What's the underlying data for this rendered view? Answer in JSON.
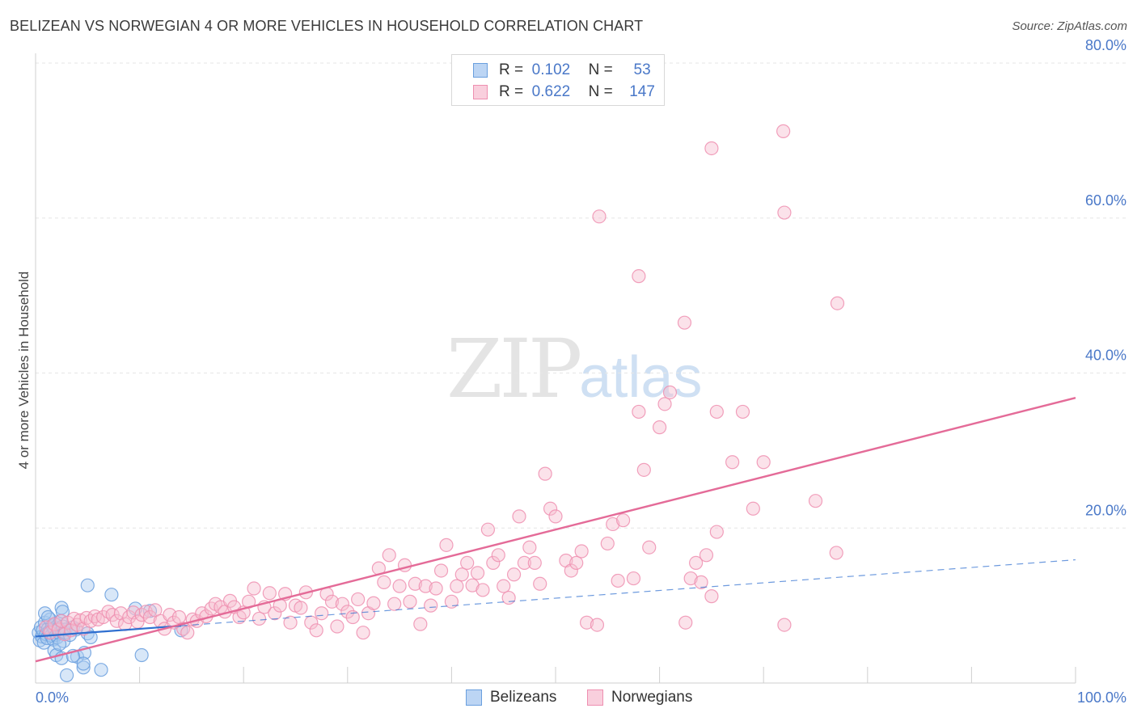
{
  "title": "BELIZEAN VS NORWEGIAN 4 OR MORE VEHICLES IN HOUSEHOLD CORRELATION CHART",
  "source": "Source: ZipAtlas.com",
  "watermark": {
    "zip": "ZIP",
    "atlas": "atlas"
  },
  "legend_top": {
    "rows": [
      {
        "r_label": "R =",
        "r_value": "0.102",
        "n_label": "N =",
        "n_value": "53"
      },
      {
        "r_label": "R =",
        "r_value": "0.622",
        "n_label": "N =",
        "n_value": "147"
      }
    ]
  },
  "legend_bottom": {
    "belizeans": "Belizeans",
    "norwegians": "Norwegians"
  },
  "colors": {
    "blue_fill": "#a9c9ef",
    "blue_stroke": "#6a9fde",
    "blue_line": "#2f6fd0",
    "pink_fill": "#f6bfd1",
    "pink_stroke": "#ee8fb0",
    "pink_line": "#e46b98",
    "grid": "#e6e6e6",
    "tick_text": "#4a78c8"
  },
  "chart_data": {
    "type": "scatter",
    "title": "BELIZEAN VS NORWEGIAN 4 OR MORE VEHICLES IN HOUSEHOLD CORRELATION CHART",
    "xlabel": "",
    "ylabel": "4 or more Vehicles in Household",
    "xlim": [
      0,
      100
    ],
    "ylim": [
      0,
      80
    ],
    "y_ticks": [
      {
        "v": 20,
        "label": "20.0%"
      },
      {
        "v": 40,
        "label": "40.0%"
      },
      {
        "v": 60,
        "label": "60.0%"
      },
      {
        "v": 80,
        "label": "80.0%"
      }
    ],
    "x_ticks": [
      {
        "v": 0,
        "label": "0.0%"
      },
      {
        "v": 100,
        "label": "100.0%"
      }
    ],
    "series": [
      {
        "name": "Belizeans",
        "R": 0.102,
        "N": 53,
        "trend": {
          "x0": 0,
          "y0": 6.0,
          "x1": 100,
          "y1": 15.9,
          "solid_until": 14
        },
        "points": [
          [
            0.3,
            6.5
          ],
          [
            0.4,
            5.5
          ],
          [
            0.5,
            7.2
          ],
          [
            0.6,
            6.0
          ],
          [
            0.7,
            6.8
          ],
          [
            0.8,
            5.2
          ],
          [
            0.9,
            7.8
          ],
          [
            1.0,
            6.3
          ],
          [
            1.1,
            5.8
          ],
          [
            1.2,
            7.0
          ],
          [
            1.3,
            6.6
          ],
          [
            1.4,
            8.2
          ],
          [
            1.5,
            6.1
          ],
          [
            1.6,
            7.4
          ],
          [
            1.7,
            5.6
          ],
          [
            1.8,
            6.9
          ],
          [
            1.9,
            7.6
          ],
          [
            2.0,
            6.2
          ],
          [
            2.1,
            5.9
          ],
          [
            2.2,
            7.1
          ],
          [
            2.3,
            6.4
          ],
          [
            2.4,
            8.0
          ],
          [
            2.5,
            6.7
          ],
          [
            2.6,
            7.3
          ],
          [
            2.7,
            5.4
          ],
          [
            2.8,
            6.5
          ],
          [
            0.9,
            9.0
          ],
          [
            1.2,
            8.5
          ],
          [
            1.8,
            4.2
          ],
          [
            2.0,
            3.6
          ],
          [
            2.3,
            5.0
          ],
          [
            2.5,
            9.7
          ],
          [
            2.6,
            9.2
          ],
          [
            2.9,
            6.9
          ],
          [
            3.0,
            1.0
          ],
          [
            3.3,
            6.2
          ],
          [
            3.6,
            7.2
          ],
          [
            3.9,
            6.9
          ],
          [
            4.0,
            3.4
          ],
          [
            4.6,
            2.0
          ],
          [
            4.7,
            3.9
          ],
          [
            5.0,
            6.4
          ],
          [
            5.3,
            5.9
          ],
          [
            2.5,
            3.2
          ],
          [
            3.6,
            3.5
          ],
          [
            4.6,
            2.5
          ],
          [
            6.3,
            1.7
          ],
          [
            7.3,
            11.4
          ],
          [
            10.2,
            3.6
          ],
          [
            5.0,
            12.6
          ],
          [
            14.0,
            6.8
          ],
          [
            11.0,
            9.3
          ],
          [
            9.6,
            9.6
          ]
        ]
      },
      {
        "name": "Norwegians",
        "R": 0.622,
        "N": 147,
        "trend": {
          "x0": 0,
          "y0": 2.8,
          "x1": 100,
          "y1": 36.8
        },
        "points": [
          [
            1.0,
            7.2
          ],
          [
            1.4,
            6.5
          ],
          [
            1.8,
            7.6
          ],
          [
            2.2,
            6.9
          ],
          [
            2.5,
            8.0
          ],
          [
            2.8,
            6.3
          ],
          [
            3.1,
            7.8
          ],
          [
            3.4,
            6.8
          ],
          [
            3.7,
            8.3
          ],
          [
            4.0,
            7.5
          ],
          [
            4.3,
            8.1
          ],
          [
            4.6,
            7.0
          ],
          [
            4.9,
            8.4
          ],
          [
            5.3,
            8.0
          ],
          [
            5.7,
            8.6
          ],
          [
            6.0,
            8.2
          ],
          [
            6.5,
            8.5
          ],
          [
            7.0,
            9.2
          ],
          [
            7.4,
            8.8
          ],
          [
            7.8,
            8.0
          ],
          [
            8.2,
            9.0
          ],
          [
            8.6,
            7.6
          ],
          [
            9.0,
            8.5
          ],
          [
            9.4,
            9.1
          ],
          [
            9.8,
            7.9
          ],
          [
            10.2,
            8.8
          ],
          [
            10.6,
            9.2
          ],
          [
            11.0,
            8.5
          ],
          [
            11.5,
            9.4
          ],
          [
            12.0,
            8.0
          ],
          [
            12.4,
            7.0
          ],
          [
            12.9,
            8.8
          ],
          [
            13.3,
            7.8
          ],
          [
            13.8,
            8.5
          ],
          [
            14.2,
            7.0
          ],
          [
            14.6,
            6.5
          ],
          [
            15.1,
            8.2
          ],
          [
            15.5,
            8.0
          ],
          [
            16.0,
            9.0
          ],
          [
            16.4,
            8.6
          ],
          [
            16.9,
            9.6
          ],
          [
            17.3,
            10.2
          ],
          [
            17.8,
            9.8
          ],
          [
            18.2,
            9.2
          ],
          [
            18.7,
            10.6
          ],
          [
            19.1,
            9.8
          ],
          [
            19.6,
            8.5
          ],
          [
            20.0,
            9.1
          ],
          [
            20.5,
            10.5
          ],
          [
            21.0,
            12.2
          ],
          [
            21.5,
            8.3
          ],
          [
            22.0,
            9.8
          ],
          [
            22.5,
            11.6
          ],
          [
            23.0,
            9.0
          ],
          [
            23.5,
            10.0
          ],
          [
            24.0,
            11.5
          ],
          [
            24.5,
            7.8
          ],
          [
            25.0,
            10.0
          ],
          [
            25.5,
            9.7
          ],
          [
            26.0,
            11.7
          ],
          [
            26.5,
            7.8
          ],
          [
            27.0,
            6.8
          ],
          [
            27.5,
            9.0
          ],
          [
            28.0,
            11.5
          ],
          [
            28.5,
            10.5
          ],
          [
            29.0,
            7.3
          ],
          [
            29.5,
            10.2
          ],
          [
            30.0,
            9.2
          ],
          [
            30.5,
            8.5
          ],
          [
            31.0,
            10.8
          ],
          [
            31.5,
            6.5
          ],
          [
            32.0,
            9.0
          ],
          [
            32.5,
            10.3
          ],
          [
            33.0,
            14.8
          ],
          [
            33.5,
            13.0
          ],
          [
            34.0,
            16.5
          ],
          [
            34.5,
            10.2
          ],
          [
            35.0,
            12.5
          ],
          [
            35.5,
            15.2
          ],
          [
            36.0,
            10.5
          ],
          [
            36.5,
            12.8
          ],
          [
            37.0,
            7.6
          ],
          [
            37.5,
            12.5
          ],
          [
            38.0,
            10.0
          ],
          [
            38.5,
            12.2
          ],
          [
            39.0,
            14.5
          ],
          [
            39.5,
            17.8
          ],
          [
            40.0,
            10.5
          ],
          [
            40.5,
            12.5
          ],
          [
            41.0,
            14.0
          ],
          [
            41.5,
            15.5
          ],
          [
            42.0,
            12.6
          ],
          [
            42.5,
            14.2
          ],
          [
            43.0,
            12.0
          ],
          [
            43.5,
            19.8
          ],
          [
            44.0,
            15.5
          ],
          [
            44.5,
            16.5
          ],
          [
            45.0,
            12.5
          ],
          [
            45.5,
            11.0
          ],
          [
            46.0,
            14.0
          ],
          [
            46.5,
            21.5
          ],
          [
            47.0,
            15.5
          ],
          [
            47.5,
            17.5
          ],
          [
            48.0,
            15.5
          ],
          [
            48.5,
            12.8
          ],
          [
            49.0,
            27.0
          ],
          [
            49.5,
            22.5
          ],
          [
            50.0,
            21.5
          ],
          [
            51.0,
            15.8
          ],
          [
            51.5,
            14.5
          ],
          [
            52.0,
            15.5
          ],
          [
            52.5,
            17.0
          ],
          [
            53.0,
            7.8
          ],
          [
            54.0,
            7.5
          ],
          [
            55.0,
            18.0
          ],
          [
            55.5,
            20.5
          ],
          [
            56.0,
            13.2
          ],
          [
            56.5,
            21.0
          ],
          [
            57.5,
            13.5
          ],
          [
            58.0,
            35.0
          ],
          [
            58.5,
            27.5
          ],
          [
            59.0,
            17.5
          ],
          [
            60.0,
            33.0
          ],
          [
            60.5,
            36.0
          ],
          [
            61.0,
            37.5
          ],
          [
            62.5,
            7.8
          ],
          [
            63.0,
            13.5
          ],
          [
            63.5,
            15.5
          ],
          [
            64.0,
            13.0
          ],
          [
            64.5,
            16.5
          ],
          [
            65.0,
            11.2
          ],
          [
            65.5,
            19.5
          ],
          [
            67.0,
            28.5
          ],
          [
            68.0,
            35.0
          ],
          [
            69.0,
            22.5
          ],
          [
            70.0,
            28.5
          ],
          [
            72.0,
            7.5
          ],
          [
            75.0,
            23.5
          ],
          [
            77.0,
            16.8
          ],
          [
            54.2,
            60.2
          ],
          [
            58.0,
            52.5
          ],
          [
            62.4,
            46.5
          ],
          [
            65.0,
            69.0
          ],
          [
            65.5,
            35.0
          ],
          [
            71.9,
            71.2
          ],
          [
            72.0,
            60.7
          ],
          [
            77.1,
            49.0
          ]
        ]
      }
    ]
  }
}
